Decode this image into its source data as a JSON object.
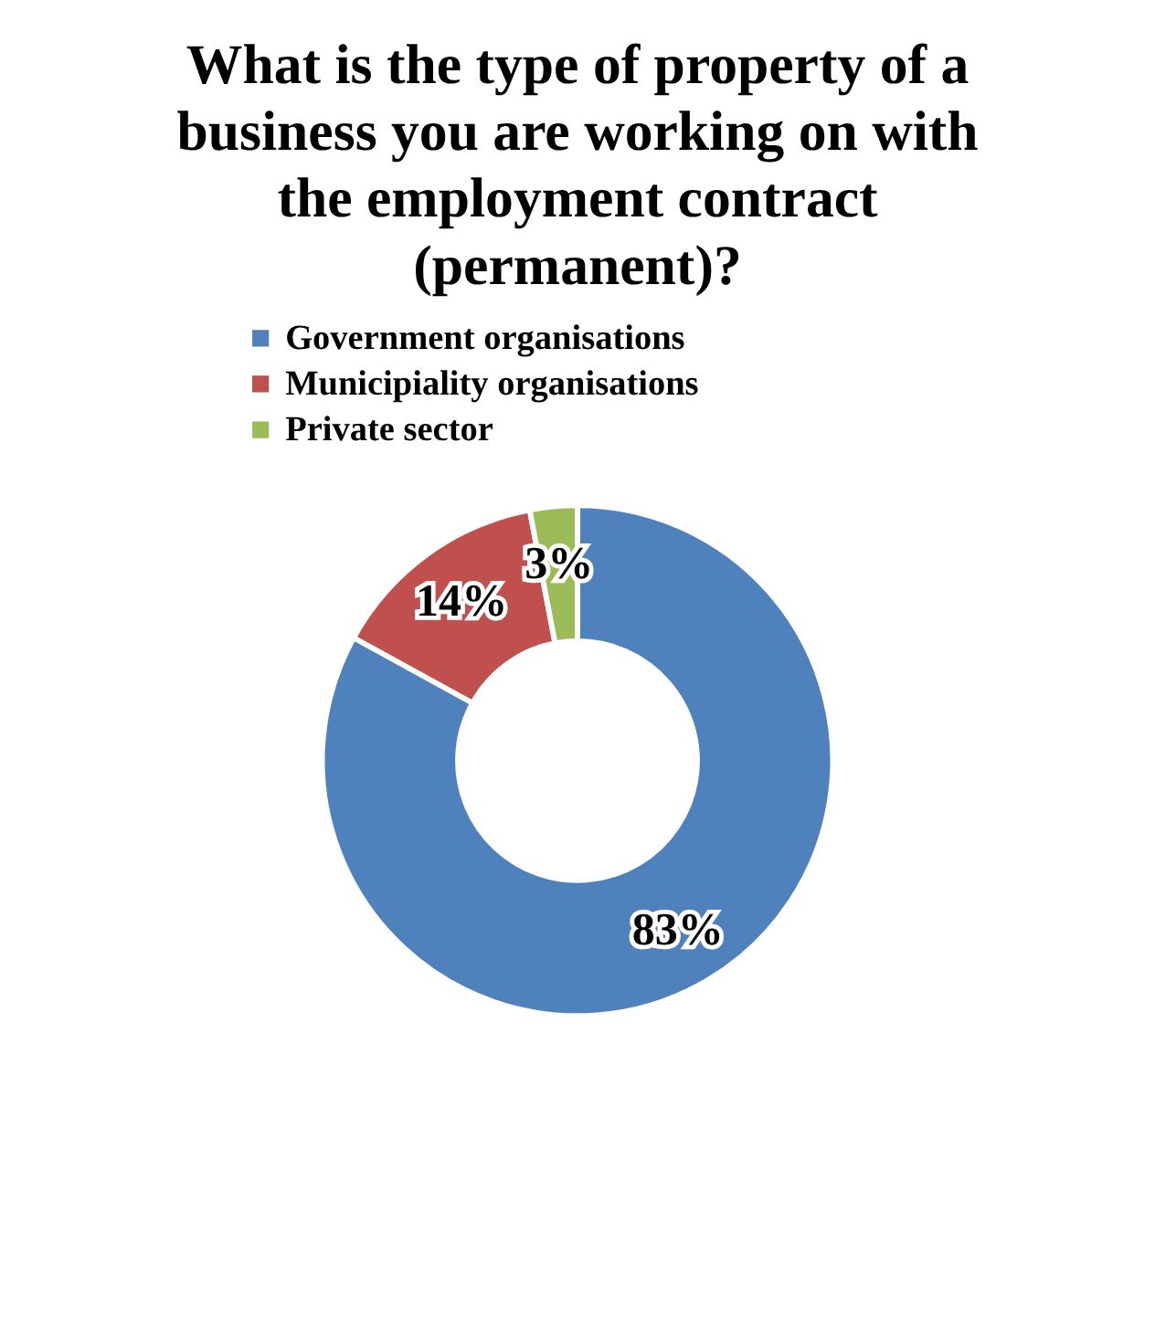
{
  "chart_data": {
    "type": "donut",
    "title": "What is the type of property of a business you are working on with the employment contract (permanent)?",
    "categories": [
      "Government organisations",
      "Municipiality organisations",
      "Private sector"
    ],
    "values": [
      83,
      14,
      3
    ],
    "colors": [
      "#4f81bd",
      "#c0504d",
      "#9bbb59"
    ],
    "value_labels": [
      "83%",
      "14%",
      "3%"
    ],
    "legend": "top"
  }
}
